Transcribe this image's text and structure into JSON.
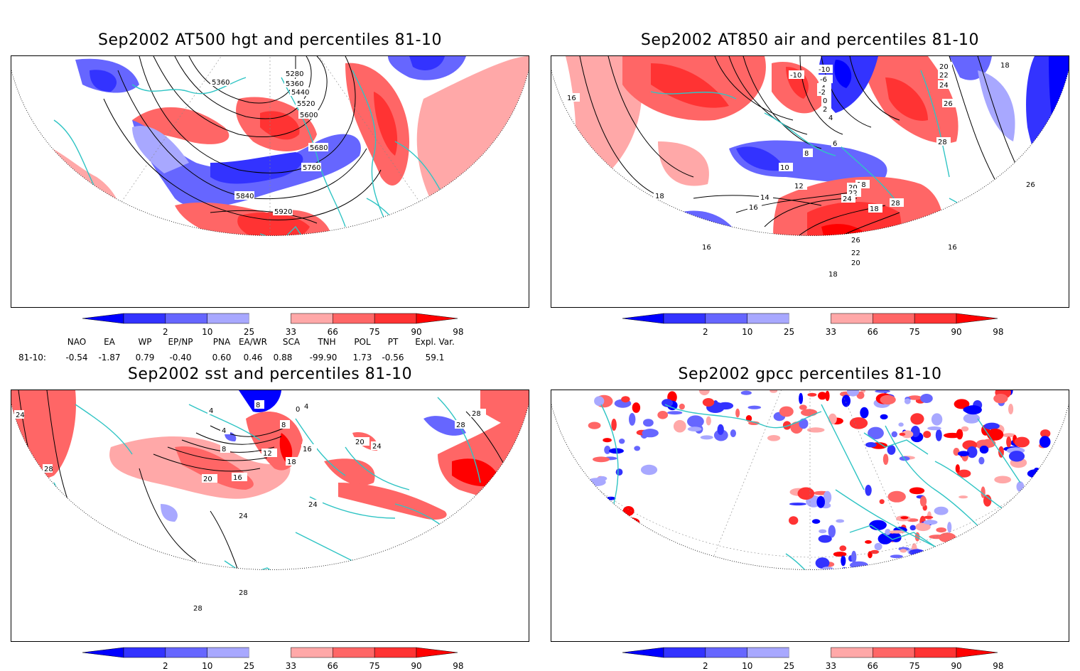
{
  "panels": [
    {
      "id": "hgt",
      "title": "Sep2002 AT500 hgt and percentiles 81-10",
      "contour_labels": [
        "5280",
        "5360",
        "5360",
        "5440",
        "5520",
        "5600",
        "5680",
        "5760",
        "5840",
        "5920"
      ]
    },
    {
      "id": "air",
      "title": "Sep2002 AT850 air and percentiles 81-10",
      "contour_labels": [
        "-10",
        "-10",
        "-6",
        "-4",
        "-2",
        "0",
        "2",
        "4",
        "6",
        "8",
        "10",
        "12",
        "14",
        "16",
        "18",
        "20",
        "22",
        "24",
        "26",
        "28",
        "16",
        "16",
        "18",
        "18",
        "20",
        "22",
        "24",
        "26",
        "16",
        "18",
        "28",
        "26",
        "22",
        "20",
        "18"
      ]
    },
    {
      "id": "sst",
      "title": "Sep2002 sst and percentiles 81-10",
      "contour_labels": [
        "24",
        "28",
        "0",
        "4",
        "4",
        "8",
        "8",
        "12",
        "16",
        "18",
        "20",
        "24",
        "24",
        "28",
        "28",
        "16",
        "20",
        "24",
        "28",
        "28",
        "4",
        "8"
      ]
    },
    {
      "id": "gpcc",
      "title": "Sep2002 gpcc percentiles 81-10",
      "contour_labels": []
    }
  ],
  "colorbar": {
    "ticks": [
      "2",
      "10",
      "25",
      "33",
      "66",
      "75",
      "90",
      "98"
    ],
    "colors": [
      "#0000ff",
      "#3333ff",
      "#6666ff",
      "#a8a8ff",
      "#ffffff",
      "#ffa8a8",
      "#ff6666",
      "#ff3333",
      "#ff0000"
    ]
  },
  "indices": {
    "header": [
      "NAO",
      "EA",
      "WP",
      "EP/NP",
      "PNA",
      "EA/WR",
      "SCA",
      "TNH",
      "POL",
      "PT",
      "Expl. Var."
    ],
    "row_label": "81-10:",
    "values": [
      "-0.54",
      "-1.87",
      "0.79",
      "-0.40",
      "0.60",
      "0.46",
      "0.88",
      "-99.90",
      "1.73",
      "-0.56",
      "59.1"
    ]
  },
  "colors": {
    "land_outline": "#2fc4c4",
    "contour": "#000000",
    "grid": "#888888"
  }
}
